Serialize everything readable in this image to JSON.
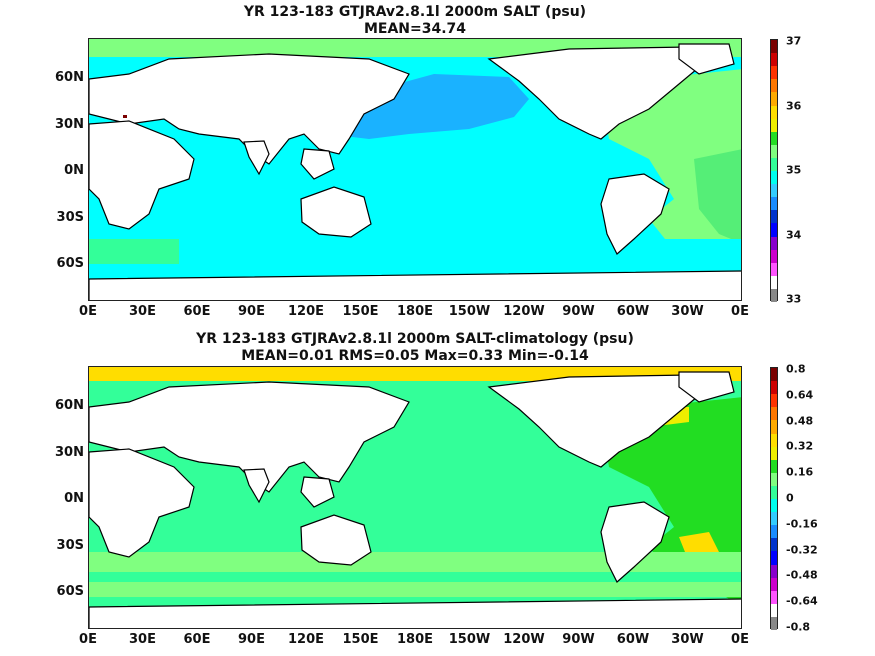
{
  "panel1": {
    "title_line1": "YR 123-183 GTJRAv2.8.1l 2000m SALT (psu)",
    "title_line2": "MEAN=34.74",
    "colorbar_labels": [
      "37",
      "36",
      "35",
      "34",
      "33"
    ],
    "colorbar_colors": [
      "#7a0000",
      "#cc0000",
      "#ff3300",
      "#ff7700",
      "#ffaa00",
      "#ffdd00",
      "#eeee00",
      "#22dd22",
      "#80ff80",
      "#33ff99",
      "#00ffee",
      "#33ccff",
      "#1a8cff",
      "#0033cc",
      "#0000ff",
      "#8800cc",
      "#cc00cc",
      "#ff55ff",
      "#ffffff",
      "#888888"
    ]
  },
  "panel2": {
    "title_line1": "YR 123-183 GTJRAv2.8.1l 2000m SALT-climatology (psu)",
    "title_line2": "MEAN=0.01   RMS=0.05   Max=0.33   Min=-0.14",
    "colorbar_labels": [
      "0.8",
      "0.64",
      "0.48",
      "0.32",
      "0.16",
      "0",
      "-0.16",
      "-0.32",
      "-0.48",
      "-0.64",
      "-0.8"
    ],
    "colorbar_colors": [
      "#7a0000",
      "#cc0000",
      "#ff3300",
      "#ff7700",
      "#ffaa00",
      "#ffdd00",
      "#eeee00",
      "#22dd22",
      "#80ff80",
      "#33ff99",
      "#00ffee",
      "#33ccff",
      "#1a8cff",
      "#0033cc",
      "#0000ff",
      "#8800cc",
      "#cc00cc",
      "#ff55ff",
      "#ffffff",
      "#888888"
    ]
  },
  "x_ticks": [
    "0E",
    "30E",
    "60E",
    "90E",
    "120E",
    "150E",
    "180E",
    "150W",
    "120W",
    "90W",
    "60W",
    "30W",
    "0E"
  ],
  "y_ticks": [
    "60N",
    "30N",
    "0N",
    "30S",
    "60S"
  ],
  "colors": {
    "land": "#ffffff",
    "coast": "#000000",
    "cyan": "#00ffff",
    "lightblue": "#1ab2ff",
    "green_light": "#80ff80",
    "green": "#33ff99",
    "yellow": "#ffdd00"
  }
}
